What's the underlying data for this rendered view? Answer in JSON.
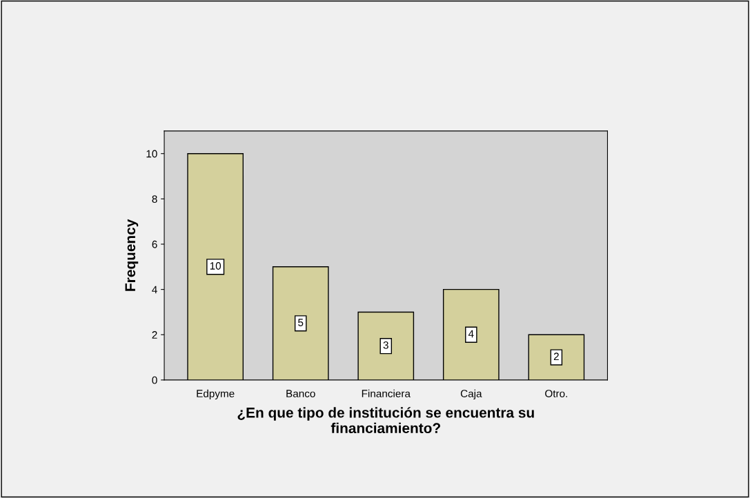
{
  "chart_data": {
    "type": "bar",
    "xlabel": "¿En que tipo de institución se encuentra su\nfinanciamiento?",
    "ylabel": "Frequency",
    "categories": [
      "Edpyme",
      "Banco",
      "Financiera",
      "Caja",
      "Otro."
    ],
    "values": [
      10,
      5,
      3,
      4,
      2
    ],
    "color": "#d4d09c",
    "ylim": [
      0,
      11
    ],
    "yticks": [
      0,
      2,
      4,
      6,
      8,
      10
    ],
    "grid": false,
    "data_labels": true
  }
}
